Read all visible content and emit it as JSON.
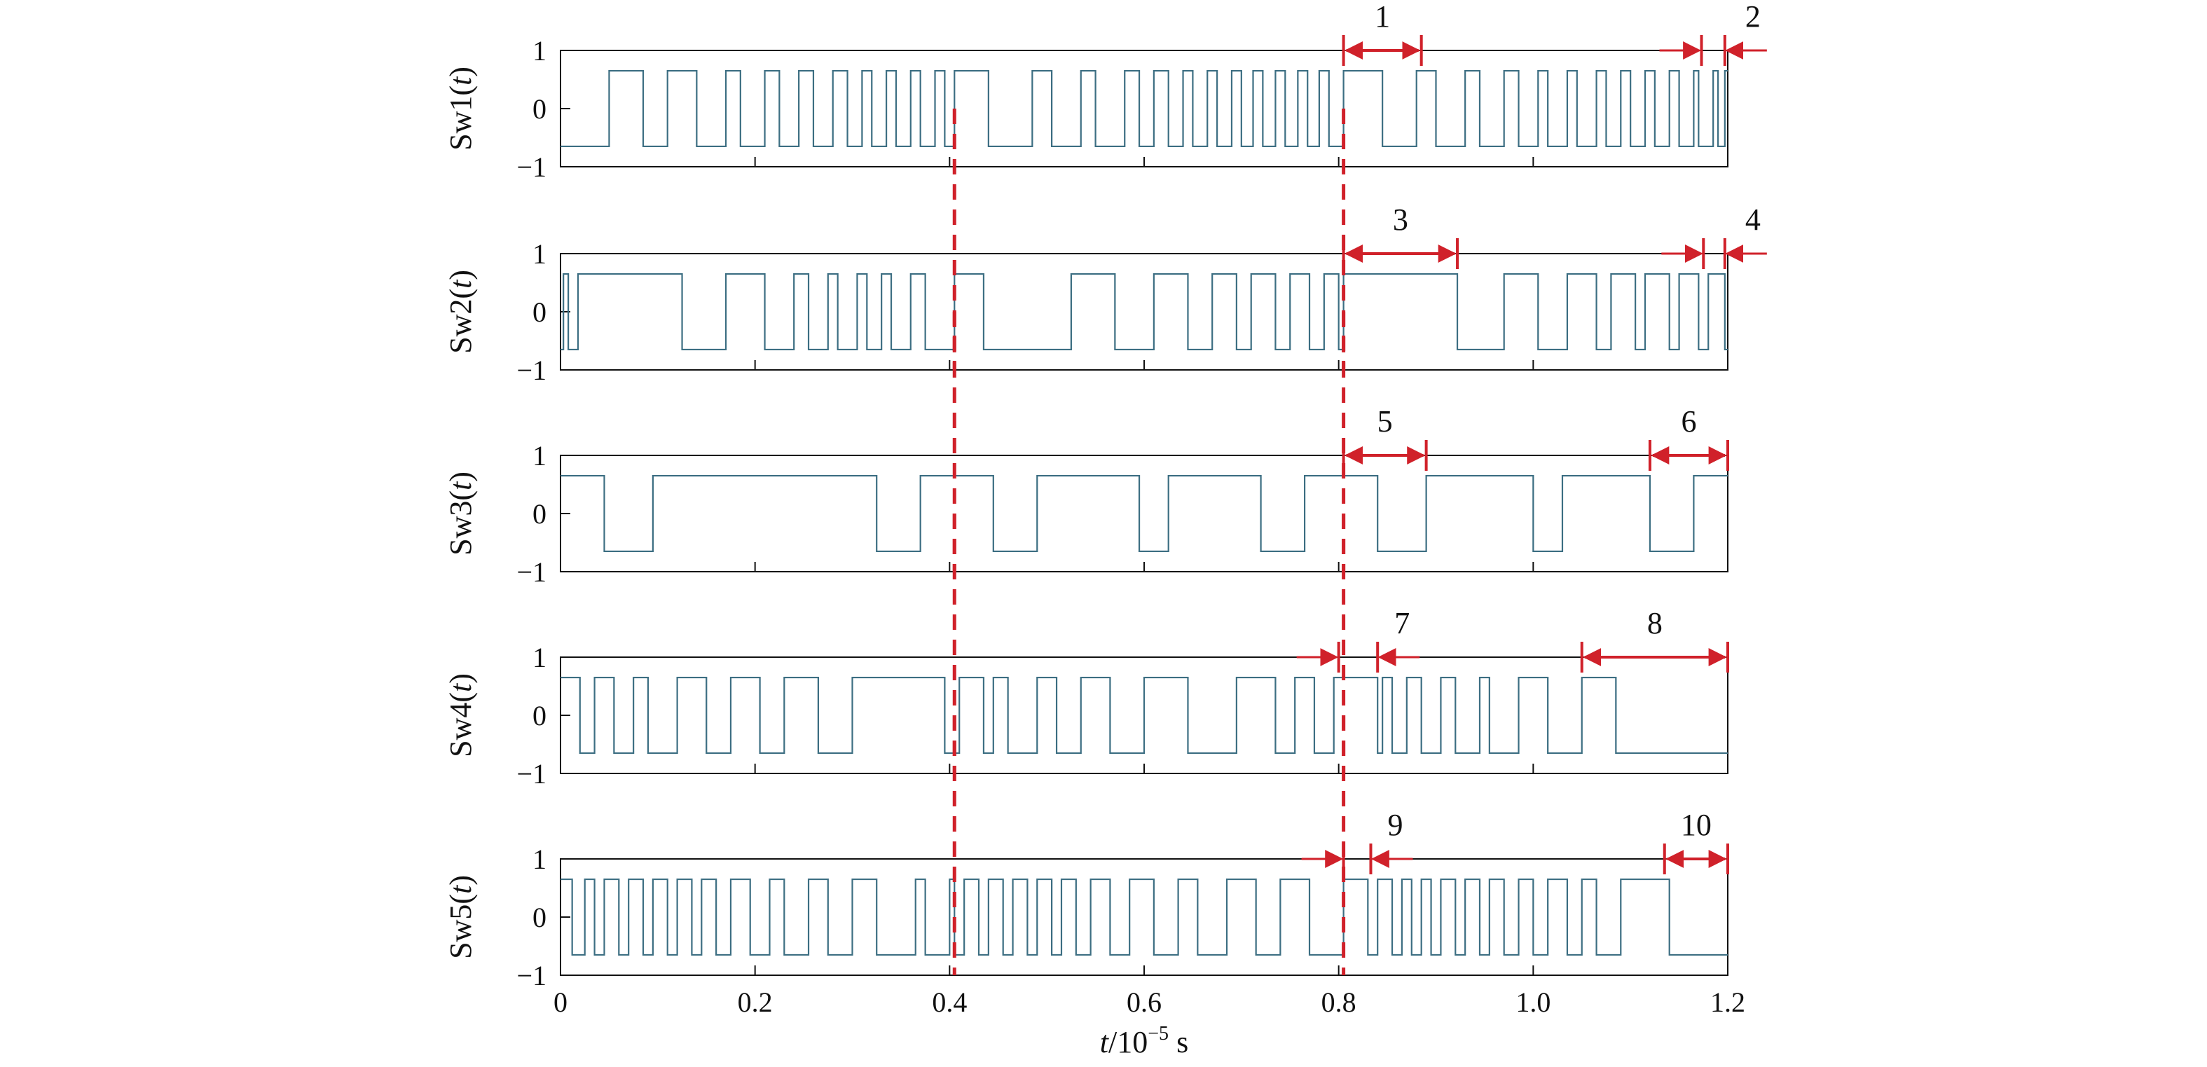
{
  "chart_data": {
    "type": "line",
    "x_label": {
      "var": "t",
      "base": "/10",
      "exp": "−5",
      "unit": " s"
    },
    "xlim": [
      0,
      1.2
    ],
    "x_ticks": [
      "0",
      "0.2",
      "0.4",
      "0.6",
      "0.8",
      "1.0",
      "1.2"
    ],
    "ylim": [
      -1,
      1
    ],
    "y_ticks": [
      "1",
      "0",
      "−1"
    ],
    "colors": {
      "signal": "#3c6e82",
      "annotation": "#d0212a",
      "axes": "#111111"
    },
    "signal_level": 0.65,
    "dashed_markers_x": [
      0.405,
      0.805
    ],
    "panels": [
      {
        "name": "Sw1",
        "ylabel_prefix": "Sw1(",
        "ylabel_var": "t",
        "ylabel_suffix": ")",
        "start_level": -1,
        "transitions": [
          0.05,
          0.085,
          0.11,
          0.14,
          0.17,
          0.185,
          0.21,
          0.225,
          0.245,
          0.26,
          0.28,
          0.295,
          0.31,
          0.32,
          0.335,
          0.345,
          0.36,
          0.37,
          0.385,
          0.395,
          0.405,
          0.44,
          0.485,
          0.505,
          0.535,
          0.55,
          0.58,
          0.595,
          0.61,
          0.625,
          0.64,
          0.65,
          0.665,
          0.675,
          0.69,
          0.7,
          0.712,
          0.722,
          0.735,
          0.745,
          0.758,
          0.768,
          0.78,
          0.79,
          0.805,
          0.845,
          0.88,
          0.9,
          0.93,
          0.945,
          0.97,
          0.985,
          1.005,
          1.015,
          1.035,
          1.045,
          1.065,
          1.075,
          1.09,
          1.1,
          1.115,
          1.125,
          1.14,
          1.15,
          1.165,
          1.17,
          1.185,
          1.19,
          1.197
        ],
        "annotations": [
          {
            "label": "1",
            "type": "span",
            "x1": 0.805,
            "x2": 0.885
          },
          {
            "label": "2",
            "type": "squeeze",
            "x1": 1.173,
            "x2": 1.197
          }
        ]
      },
      {
        "name": "Sw2",
        "ylabel_prefix": "Sw2(",
        "ylabel_var": "t",
        "ylabel_suffix": ")",
        "start_level": -1,
        "transitions": [
          0.003,
          0.008,
          0.018,
          0.125,
          0.17,
          0.21,
          0.24,
          0.255,
          0.275,
          0.285,
          0.305,
          0.315,
          0.33,
          0.34,
          0.36,
          0.375,
          0.405,
          0.435,
          0.525,
          0.57,
          0.61,
          0.645,
          0.67,
          0.695,
          0.71,
          0.735,
          0.75,
          0.77,
          0.785,
          0.8,
          0.805,
          0.922,
          0.97,
          1.005,
          1.035,
          1.065,
          1.08,
          1.105,
          1.115,
          1.14,
          1.15,
          1.17,
          1.18,
          1.197
        ],
        "annotations": [
          {
            "label": "3",
            "type": "span",
            "x1": 0.805,
            "x2": 0.922
          },
          {
            "label": "4",
            "type": "squeeze",
            "x1": 1.175,
            "x2": 1.197
          }
        ]
      },
      {
        "name": "Sw3",
        "ylabel_prefix": "Sw3(",
        "ylabel_var": "t",
        "ylabel_suffix": ")",
        "start_level": 1,
        "transitions": [
          0.045,
          0.095,
          0.325,
          0.37,
          0.445,
          0.49,
          0.595,
          0.625,
          0.72,
          0.765,
          0.84,
          0.89,
          1.0,
          1.03,
          1.12,
          1.165
        ],
        "annotations": [
          {
            "label": "5",
            "type": "span",
            "x1": 0.805,
            "x2": 0.89
          },
          {
            "label": "6",
            "type": "span",
            "x1": 1.12,
            "x2": 1.2
          }
        ]
      },
      {
        "name": "Sw4",
        "ylabel_prefix": "Sw4(",
        "ylabel_var": "t",
        "ylabel_suffix": ")",
        "start_level": 1,
        "transitions": [
          0.02,
          0.035,
          0.055,
          0.075,
          0.09,
          0.12,
          0.15,
          0.175,
          0.205,
          0.23,
          0.265,
          0.3,
          0.395,
          0.41,
          0.435,
          0.445,
          0.46,
          0.49,
          0.51,
          0.535,
          0.565,
          0.6,
          0.645,
          0.695,
          0.735,
          0.755,
          0.775,
          0.795,
          0.84,
          0.845,
          0.855,
          0.87,
          0.885,
          0.905,
          0.92,
          0.945,
          0.955,
          0.985,
          1.015,
          1.05,
          1.085
        ],
        "annotations": [
          {
            "label": "7",
            "type": "squeeze",
            "x1": 0.8,
            "x2": 0.84
          },
          {
            "label": "8",
            "type": "span",
            "x1": 1.05,
            "x2": 1.2
          }
        ]
      },
      {
        "name": "Sw5",
        "ylabel_prefix": "Sw5(",
        "ylabel_var": "t",
        "ylabel_suffix": ")",
        "start_level": 1,
        "transitions": [
          0.012,
          0.025,
          0.035,
          0.045,
          0.06,
          0.07,
          0.085,
          0.095,
          0.11,
          0.12,
          0.135,
          0.145,
          0.16,
          0.175,
          0.195,
          0.215,
          0.23,
          0.255,
          0.275,
          0.3,
          0.325,
          0.365,
          0.375,
          0.4,
          0.405,
          0.415,
          0.43,
          0.44,
          0.455,
          0.465,
          0.48,
          0.49,
          0.505,
          0.515,
          0.53,
          0.545,
          0.565,
          0.585,
          0.61,
          0.635,
          0.655,
          0.685,
          0.715,
          0.74,
          0.77,
          0.805,
          0.83,
          0.84,
          0.855,
          0.865,
          0.875,
          0.885,
          0.895,
          0.905,
          0.92,
          0.93,
          0.945,
          0.955,
          0.97,
          0.985,
          1.0,
          1.015,
          1.035,
          1.05,
          1.065,
          1.09,
          1.14
        ],
        "annotations": [
          {
            "label": "9",
            "type": "squeeze",
            "x1": 0.805,
            "x2": 0.833
          },
          {
            "label": "10",
            "type": "span",
            "x1": 1.135,
            "x2": 1.2
          }
        ]
      }
    ]
  }
}
